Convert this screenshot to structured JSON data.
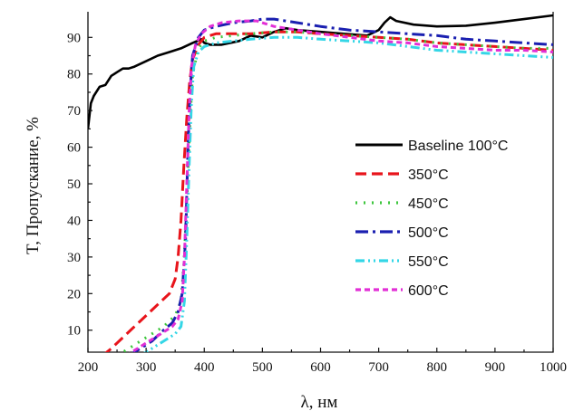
{
  "chart_data": {
    "type": "line",
    "title": "",
    "xlabel": "λ, нм",
    "ylabel": "T, Пропускание, %",
    "xlim": [
      200,
      1000
    ],
    "ylim": [
      4,
      97
    ],
    "xticks": [
      200,
      300,
      400,
      500,
      600,
      700,
      800,
      900,
      1000
    ],
    "yticks": [
      10,
      20,
      30,
      40,
      50,
      60,
      70,
      80,
      90
    ],
    "grid": false,
    "legend": "right",
    "series": [
      {
        "name": "Baseline 100°C",
        "color": "#000000",
        "dash": "solid",
        "x": [
          200,
          205,
          210,
          220,
          230,
          240,
          250,
          260,
          270,
          280,
          300,
          320,
          340,
          360,
          380,
          395,
          400,
          410,
          430,
          460,
          480,
          500,
          520,
          540,
          560,
          600,
          640,
          680,
          700,
          710,
          720,
          730,
          760,
          800,
          850,
          900,
          950,
          1000
        ],
        "y": [
          65,
          72,
          74,
          76.5,
          77,
          79.5,
          80.5,
          81.5,
          81.5,
          82,
          83.5,
          85,
          86,
          87,
          88.5,
          89.5,
          88.5,
          88,
          88,
          89,
          90.5,
          90,
          91.5,
          92.5,
          92,
          91.5,
          91,
          90.5,
          92,
          94,
          95.5,
          94.5,
          93.5,
          93,
          93.2,
          94,
          95,
          96
        ]
      },
      {
        "name": "350°C",
        "color": "#e8141b",
        "dash": "12,6",
        "x": [
          225,
          240,
          260,
          280,
          300,
          320,
          340,
          350,
          355,
          360,
          365,
          370,
          375,
          380,
          390,
          400,
          420,
          450,
          480,
          520,
          560,
          600,
          650,
          700,
          750,
          800,
          850,
          900,
          950,
          1000
        ],
        "y": [
          3,
          5,
          8,
          11,
          14,
          17,
          20,
          24,
          30,
          40,
          55,
          68,
          78,
          84,
          88,
          90,
          91,
          91,
          91,
          91.5,
          91.5,
          91,
          90.5,
          90,
          89.5,
          88.5,
          88,
          87.5,
          87,
          86.5
        ]
      },
      {
        "name": "450°C",
        "color": "#3ec63e",
        "dash": "2,7",
        "x": [
          250,
          270,
          290,
          310,
          330,
          350,
          360,
          365,
          370,
          375,
          380,
          390,
          400,
          420,
          450,
          480,
          520,
          560,
          600,
          650,
          700,
          750,
          800,
          850,
          900,
          950,
          1000
        ],
        "y": [
          3,
          5,
          7,
          9,
          11,
          14,
          18,
          28,
          45,
          65,
          80,
          87,
          89,
          90,
          90.5,
          91,
          91.5,
          91.5,
          91,
          90.5,
          90,
          89.5,
          88.5,
          88,
          87.5,
          87,
          87
        ]
      },
      {
        "name": "500°C",
        "color": "#1a1fb0",
        "dash": "14,5,3,5",
        "x": [
          270,
          290,
          310,
          330,
          345,
          355,
          362,
          368,
          372,
          376,
          380,
          390,
          400,
          420,
          450,
          480,
          500,
          520,
          540,
          560,
          600,
          650,
          700,
          750,
          800,
          850,
          900,
          950,
          1000
        ],
        "y": [
          3,
          5,
          7,
          10,
          12,
          15,
          20,
          35,
          60,
          76,
          85,
          90,
          92,
          93,
          94,
          94.5,
          95,
          95,
          94.5,
          94,
          93,
          92,
          91.5,
          91,
          90.5,
          89.5,
          89,
          88.5,
          88
        ]
      },
      {
        "name": "550°C",
        "color": "#34d6e6",
        "dash": "10,4,2,4,2,4",
        "x": [
          290,
          310,
          330,
          350,
          360,
          366,
          370,
          374,
          378,
          382,
          390,
          400,
          420,
          450,
          480,
          520,
          560,
          600,
          650,
          700,
          750,
          800,
          850,
          900,
          950,
          1000
        ],
        "y": [
          3,
          5,
          7,
          9,
          11,
          18,
          35,
          55,
          72,
          82,
          86,
          87.5,
          88.5,
          89,
          89.5,
          90,
          90,
          89.5,
          89,
          88.5,
          87.5,
          86.5,
          86,
          85.5,
          85,
          84.5
        ]
      },
      {
        "name": "600°C",
        "color": "#e22fd6",
        "dash": "6,4",
        "x": [
          265,
          285,
          305,
          325,
          345,
          355,
          362,
          366,
          370,
          374,
          378,
          385,
          395,
          410,
          430,
          460,
          490,
          520,
          560,
          600,
          650,
          700,
          750,
          800,
          850,
          900,
          950,
          1000
        ],
        "y": [
          3,
          5,
          7,
          9,
          11,
          13,
          18,
          30,
          50,
          70,
          82,
          88,
          91,
          93,
          94,
          94.5,
          94.5,
          93,
          92,
          91,
          90,
          89,
          88.5,
          87.5,
          87,
          86.5,
          86.5,
          86
        ]
      }
    ]
  }
}
